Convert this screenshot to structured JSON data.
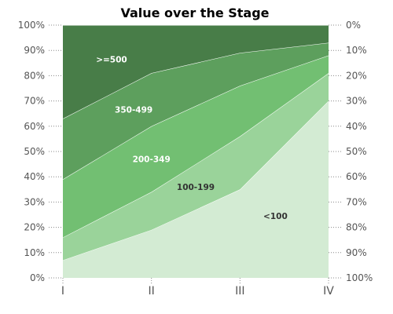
{
  "chart_data": {
    "type": "area",
    "title": "Value over the Stage",
    "xlabel": "",
    "ylabel": "",
    "categories": [
      "I",
      "II",
      "III",
      "IV"
    ],
    "stacked": true,
    "percent": true,
    "ylim": [
      0,
      100
    ],
    "y_ticks_left": [
      "0%",
      "10%",
      "20%",
      "30%",
      "40%",
      "50%",
      "60%",
      "70%",
      "80%",
      "90%",
      "100%"
    ],
    "y_ticks_right": [
      "100%",
      "90%",
      "80%",
      "70%",
      "60%",
      "50%",
      "40%",
      "30%",
      "20%",
      "10%",
      "0%"
    ],
    "grid": true,
    "series": [
      {
        "name": "<100",
        "values": [
          7,
          19,
          35,
          70
        ],
        "color": "#d3ebd3",
        "label_color": "#333333"
      },
      {
        "name": "100-199",
        "values": [
          9,
          15,
          21,
          11
        ],
        "color": "#9ad39a",
        "label_color": "#333333"
      },
      {
        "name": "200-349",
        "values": [
          23,
          26,
          20,
          7
        ],
        "color": "#72bf72",
        "label_color": "#ffffff"
      },
      {
        "name": "350-499",
        "values": [
          24,
          21,
          13,
          5
        ],
        "color": "#5d9f5d",
        "label_color": "#ffffff"
      },
      {
        "name": ">=500",
        "values": [
          37,
          19,
          11,
          7
        ],
        "color": "#487d48",
        "label_color": "#ffffff"
      }
    ]
  }
}
